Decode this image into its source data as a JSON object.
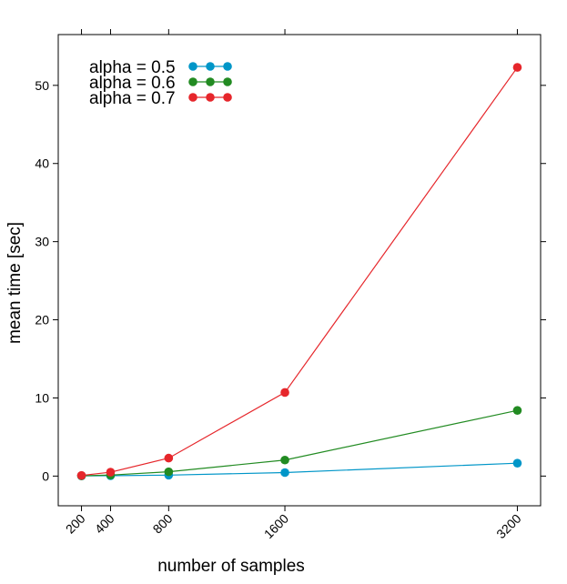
{
  "chart_data": {
    "type": "line",
    "title": "",
    "xlabel": "number of samples",
    "ylabel": "mean time [sec]",
    "x": [
      200,
      400,
      800,
      1600,
      3200
    ],
    "x_ticks": [
      "200",
      "400",
      "800",
      "1600",
      "3200"
    ],
    "y_ticks": [
      "0",
      "10",
      "20",
      "30",
      "40",
      "50"
    ],
    "xlim": [
      40,
      3360
    ],
    "ylim": [
      -3.8,
      56.5
    ],
    "grid": false,
    "legend_position": "top-left",
    "series": [
      {
        "name": "alpha = 0.5",
        "color": "#0096c8",
        "values": [
          0.02,
          0.05,
          0.12,
          0.45,
          1.65
        ]
      },
      {
        "name": "alpha = 0.6",
        "color": "#228b22",
        "values": [
          0.04,
          0.13,
          0.55,
          2.05,
          8.4
        ]
      },
      {
        "name": "alpha = 0.7",
        "color": "#e6262b",
        "values": [
          0.08,
          0.5,
          2.3,
          10.7,
          52.3
        ]
      }
    ]
  }
}
